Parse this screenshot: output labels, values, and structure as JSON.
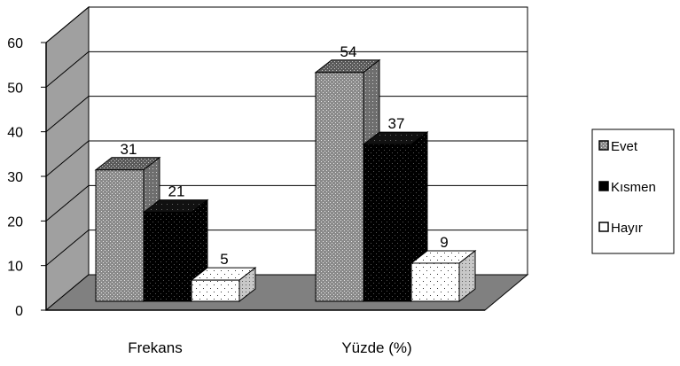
{
  "chart_data": {
    "type": "bar",
    "title": "",
    "xlabel": "",
    "ylabel": "",
    "categories": [
      "Frekans",
      "Yüzde (%)"
    ],
    "series": [
      {
        "name": "Evet",
        "values": [
          31,
          54
        ],
        "pattern": "grey-dots",
        "color": "#8c8c8c"
      },
      {
        "name": "Kısmen",
        "values": [
          21,
          37
        ],
        "pattern": "black-dots",
        "color": "#000000"
      },
      {
        "name": "Hayır",
        "values": [
          5,
          9
        ],
        "pattern": "white-dots",
        "color": "#ffffff"
      }
    ],
    "ylim": [
      0,
      60
    ],
    "yticks": [
      0,
      10,
      20,
      30,
      40,
      50,
      60
    ],
    "grid": true,
    "three_d": true,
    "legend_position": "right",
    "colors": {
      "wall": "#ffffff",
      "floor": "#808080",
      "side_wall": "#a0a0a0"
    }
  }
}
